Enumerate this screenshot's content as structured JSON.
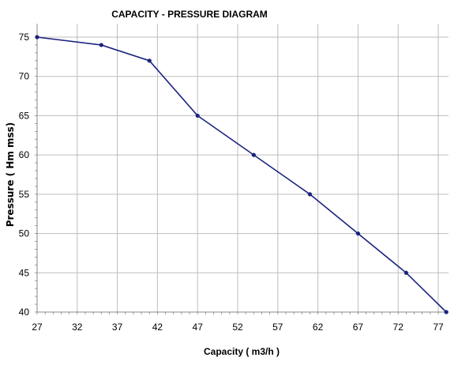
{
  "chart_data": {
    "type": "line",
    "title": "CAPACITY - PRESSURE DIAGRAM",
    "xlabel": "Capacity ( m3/h )",
    "ylabel": "Pressure ( Hm mss)",
    "xlim": [
      27,
      78
    ],
    "ylim": [
      40,
      76
    ],
    "xticks": [
      "27",
      "32",
      "37",
      "42",
      "47",
      "52",
      "57",
      "62",
      "67",
      "72",
      "77"
    ],
    "yticks": [
      "40",
      "45",
      "50",
      "55",
      "60",
      "65",
      "70",
      "75"
    ],
    "grid": true,
    "line_color": "#1a237e",
    "series": [
      {
        "x": [
          27,
          35,
          41,
          47,
          54,
          61,
          67,
          73,
          78
        ],
        "y": [
          75,
          74,
          72,
          65,
          60,
          55,
          50,
          45,
          40
        ]
      }
    ]
  }
}
